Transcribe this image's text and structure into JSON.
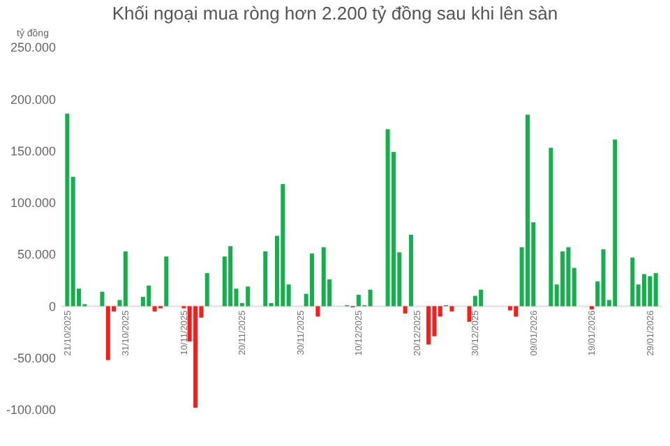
{
  "chart_data": {
    "type": "bar",
    "title": "Khối ngoại mua ròng hơn 2.200 tỷ đồng sau khi lên sàn",
    "ylabel": "tỷ đồng",
    "x": [
      "2025-10-21",
      "2025-10-22",
      "2025-10-23",
      "2025-10-24",
      "2025-10-27",
      "2025-10-28",
      "2025-10-29",
      "2025-10-30",
      "2025-10-31",
      "2025-11-03",
      "2025-11-04",
      "2025-11-05",
      "2025-11-06",
      "2025-11-07",
      "2025-11-10",
      "2025-11-11",
      "2025-11-12",
      "2025-11-13",
      "2025-11-14",
      "2025-11-17",
      "2025-11-18",
      "2025-11-19",
      "2025-11-20",
      "2025-11-21",
      "2025-11-24",
      "2025-11-25",
      "2025-11-26",
      "2025-11-27",
      "2025-11-28",
      "2025-12-01",
      "2025-12-02",
      "2025-12-03",
      "2025-12-04",
      "2025-12-05",
      "2025-12-08",
      "2025-12-09",
      "2025-12-10",
      "2025-12-11",
      "2025-12-12",
      "2025-12-15",
      "2025-12-16",
      "2025-12-17",
      "2025-12-18",
      "2025-12-19",
      "2025-12-22",
      "2025-12-23",
      "2025-12-24",
      "2025-12-25",
      "2025-12-26",
      "2025-12-29",
      "2025-12-30",
      "2025-12-31",
      "2026-01-05",
      "2026-01-06",
      "2026-01-07",
      "2026-01-08",
      "2026-01-09",
      "2026-01-12",
      "2026-01-13",
      "2026-01-14",
      "2026-01-15",
      "2026-01-16",
      "2026-01-19",
      "2026-01-20",
      "2026-01-21",
      "2026-01-22",
      "2026-01-23",
      "2026-01-26",
      "2026-01-27",
      "2026-01-28",
      "2026-01-29",
      "2026-01-30"
    ],
    "values": [
      186000,
      125000,
      17000,
      2000,
      14000,
      -52000,
      -5000,
      6000,
      53000,
      9000,
      20000,
      -5000,
      -2000,
      48000,
      -2000,
      -34000,
      -98000,
      -11000,
      32000,
      48000,
      58000,
      17000,
      3000,
      19000,
      53000,
      3000,
      68000,
      118000,
      21000,
      12000,
      51000,
      -10000,
      57000,
      26000,
      1000,
      -1000,
      11000,
      1000,
      16000,
      171000,
      149000,
      52000,
      -7000,
      69000,
      -37000,
      -29000,
      -10000,
      1000,
      -5000,
      -15000,
      10000,
      16000,
      -4000,
      -10000,
      57000,
      185000,
      81000,
      153000,
      21000,
      53000,
      57000,
      37000,
      -3000,
      24000,
      55000,
      6000,
      161000,
      47000,
      21000,
      31000,
      29000,
      32000
    ],
    "colors": [
      "#14b04c",
      "#14b04c",
      "#14b04c",
      "#14b04c",
      "#14b04c",
      "#ff1a1a",
      "#ff1a1a",
      "#14b04c",
      "#14b04c",
      "#14b04c",
      "#14b04c",
      "#ff1a1a",
      "#ff1a1a",
      "#14b04c",
      "#ff1a1a",
      "#ff1a1a",
      "#ff1a1a",
      "#ff1a1a",
      "#14b04c",
      "#14b04c",
      "#14b04c",
      "#14b04c",
      "#14b04c",
      "#14b04c",
      "#14b04c",
      "#14b04c",
      "#14b04c",
      "#14b04c",
      "#14b04c",
      "#14b04c",
      "#14b04c",
      "#ff1a1a",
      "#14b04c",
      "#14b04c",
      "#14b04c",
      "#ff1a1a",
      "#14b04c",
      "#14b04c",
      "#14b04c",
      "#14b04c",
      "#14b04c",
      "#14b04c",
      "#ff1a1a",
      "#14b04c",
      "#ff1a1a",
      "#ff1a1a",
      "#ff1a1a",
      "#14b04c",
      "#ff1a1a",
      "#ff1a1a",
      "#14b04c",
      "#14b04c",
      "#ff1a1a",
      "#ff1a1a",
      "#14b04c",
      "#14b04c",
      "#14b04c",
      "#14b04c",
      "#14b04c",
      "#14b04c",
      "#14b04c",
      "#14b04c",
      "#ff1a1a",
      "#14b04c",
      "#14b04c",
      "#14b04c",
      "#14b04c",
      "#14b04c",
      "#14b04c",
      "#14b04c",
      "#14b04c",
      "#14b04c"
    ],
    "xlim": [
      "2025-10-20",
      "2026-01-31"
    ],
    "xticks": [
      {
        "value": "2025-10-21",
        "label": "21/10/2025"
      },
      {
        "value": "2025-10-31",
        "label": "31/10/2025"
      },
      {
        "value": "2025-11-10",
        "label": "10/11/2025"
      },
      {
        "value": "2025-11-20",
        "label": "20/11/2025"
      },
      {
        "value": "2025-11-30",
        "label": "30/11/2025"
      },
      {
        "value": "2025-12-10",
        "label": "10/12/2025"
      },
      {
        "value": "2025-12-20",
        "label": "20/12/2025"
      },
      {
        "value": "2025-12-30",
        "label": "30/12/2025"
      },
      {
        "value": "2026-01-09",
        "label": "09/01/2026"
      },
      {
        "value": "2026-01-19",
        "label": "19/01/2026"
      },
      {
        "value": "2026-01-29",
        "label": "29/01/2026"
      }
    ],
    "ylim": [
      -100000,
      250000
    ],
    "yticks": [
      {
        "value": -100000,
        "label": "-100.000"
      },
      {
        "value": -50000,
        "label": "-50.000"
      },
      {
        "value": 0,
        "label": "0"
      },
      {
        "value": 50000,
        "label": "50.000"
      },
      {
        "value": 100000,
        "label": "100.000"
      },
      {
        "value": 150000,
        "label": "150.000"
      },
      {
        "value": 200000,
        "label": "200.000"
      },
      {
        "value": 250000,
        "label": "250.000"
      }
    ],
    "grid": false
  }
}
